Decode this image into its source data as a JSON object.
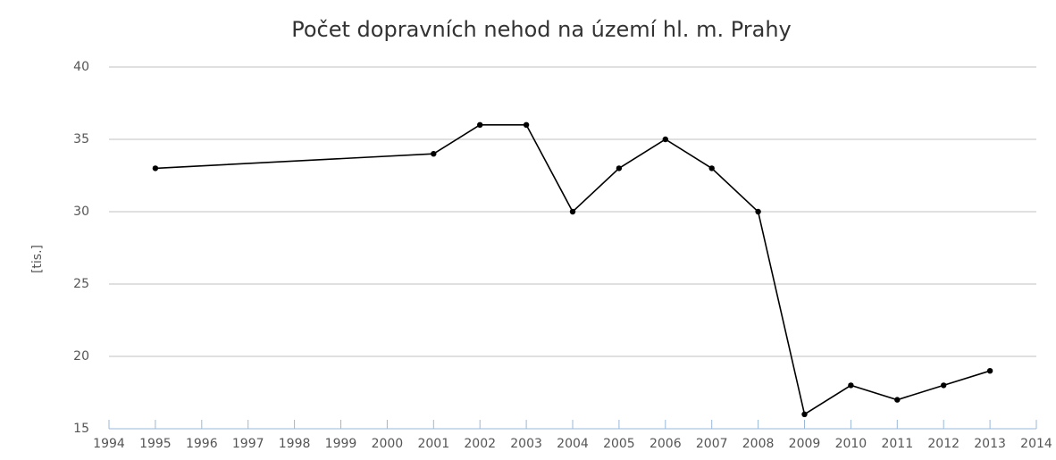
{
  "chart_data": {
    "type": "line",
    "title": "Počet dopravních nehod na území hl. m. Prahy",
    "y_label": "[tis.]",
    "x": [
      1995,
      2001,
      2002,
      2003,
      2004,
      2005,
      2006,
      2007,
      2008,
      2009,
      2010,
      2011,
      2012,
      2013
    ],
    "series": [
      {
        "color": "#000000",
        "values": [
          33,
          34,
          36,
          36,
          30,
          33,
          35,
          33,
          30,
          16,
          18,
          17,
          18,
          19
        ]
      }
    ],
    "xlim": [
      1994,
      2014
    ],
    "xticks": [
      1994,
      1995,
      1996,
      1997,
      1998,
      1999,
      2000,
      2001,
      2002,
      2003,
      2004,
      2005,
      2006,
      2007,
      2008,
      2009,
      2010,
      2011,
      2012,
      2013,
      2014
    ],
    "ylim": [
      15,
      40
    ],
    "yticks": [
      15,
      20,
      25,
      30,
      35,
      40
    ],
    "grid": true
  }
}
